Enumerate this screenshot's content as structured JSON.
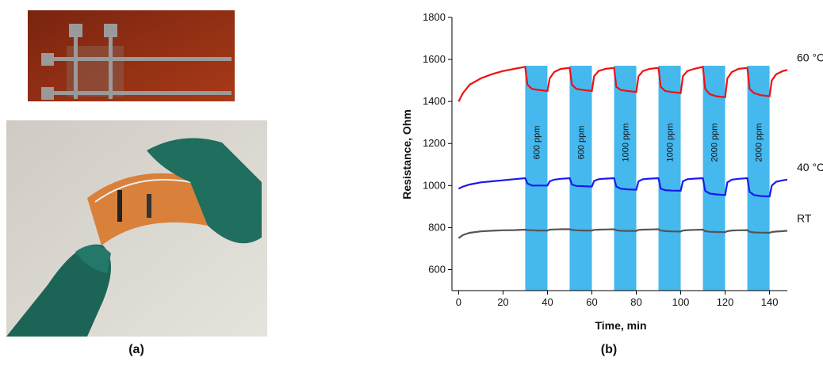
{
  "panel_labels": [
    "(a)",
    "(b)"
  ],
  "chart_data": {
    "type": "line",
    "x_label": "Time, min",
    "y_label": "Resistance, Ohm",
    "xlim": [
      -3,
      148
    ],
    "ylim": [
      500,
      1800
    ],
    "xticks": [
      0,
      20,
      40,
      60,
      80,
      100,
      120,
      140
    ],
    "yticks": [
      600,
      800,
      1000,
      1200,
      1400,
      1600,
      1800
    ],
    "x": [
      0,
      2,
      5,
      10,
      15,
      20,
      25,
      30,
      31,
      33,
      36,
      40,
      41,
      43,
      46,
      50,
      51,
      53,
      56,
      60,
      61,
      63,
      66,
      70,
      71,
      73,
      76,
      80,
      81,
      83,
      86,
      90,
      91,
      93,
      96,
      100,
      101,
      103,
      106,
      110,
      111,
      113,
      116,
      120,
      121,
      123,
      126,
      130,
      131,
      133,
      136,
      140,
      141,
      143,
      146,
      148
    ],
    "series": [
      {
        "name": "60 °C",
        "color": "#ee1111",
        "values": [
          1400,
          1440,
          1480,
          1510,
          1530,
          1545,
          1555,
          1565,
          1480,
          1460,
          1455,
          1450,
          1510,
          1540,
          1555,
          1560,
          1480,
          1460,
          1455,
          1450,
          1520,
          1545,
          1555,
          1560,
          1470,
          1455,
          1450,
          1445,
          1520,
          1545,
          1555,
          1560,
          1470,
          1450,
          1445,
          1440,
          1520,
          1545,
          1555,
          1565,
          1460,
          1435,
          1425,
          1420,
          1510,
          1540,
          1555,
          1560,
          1460,
          1440,
          1430,
          1425,
          1500,
          1530,
          1545,
          1550
        ]
      },
      {
        "name": "40 °C",
        "color": "#1a1aee",
        "values": [
          985,
          995,
          1005,
          1015,
          1020,
          1025,
          1030,
          1035,
          1010,
          1000,
          1000,
          1000,
          1020,
          1028,
          1032,
          1035,
          1005,
          998,
          997,
          995,
          1022,
          1030,
          1033,
          1035,
          995,
          985,
          982,
          980,
          1020,
          1030,
          1033,
          1035,
          985,
          978,
          976,
          975,
          1020,
          1030,
          1033,
          1035,
          975,
          962,
          958,
          955,
          1015,
          1028,
          1032,
          1035,
          970,
          955,
          950,
          948,
          1000,
          1018,
          1025,
          1028
        ]
      },
      {
        "name": "RT",
        "color": "#555555",
        "values": [
          750,
          765,
          775,
          782,
          785,
          787,
          788,
          790,
          788,
          787,
          786,
          786,
          790,
          791,
          792,
          792,
          789,
          787,
          786,
          786,
          789,
          790,
          791,
          792,
          787,
          785,
          784,
          784,
          789,
          790,
          791,
          792,
          786,
          783,
          782,
          781,
          786,
          788,
          789,
          790,
          783,
          780,
          779,
          778,
          783,
          786,
          787,
          788,
          780,
          777,
          776,
          775,
          779,
          781,
          783,
          785
        ]
      }
    ],
    "exposure_top": 1570,
    "exposure_color": "#45b8ee",
    "exposures": [
      {
        "start": 30,
        "end": 40,
        "label": "600 ppm"
      },
      {
        "start": 50,
        "end": 60,
        "label": "600 ppm"
      },
      {
        "start": 70,
        "end": 80,
        "label": "1000 ppm"
      },
      {
        "start": 90,
        "end": 100,
        "label": "1000 ppm"
      },
      {
        "start": 110,
        "end": 120,
        "label": "2000 ppm"
      },
      {
        "start": 130,
        "end": 140,
        "label": "2000 ppm"
      }
    ]
  }
}
